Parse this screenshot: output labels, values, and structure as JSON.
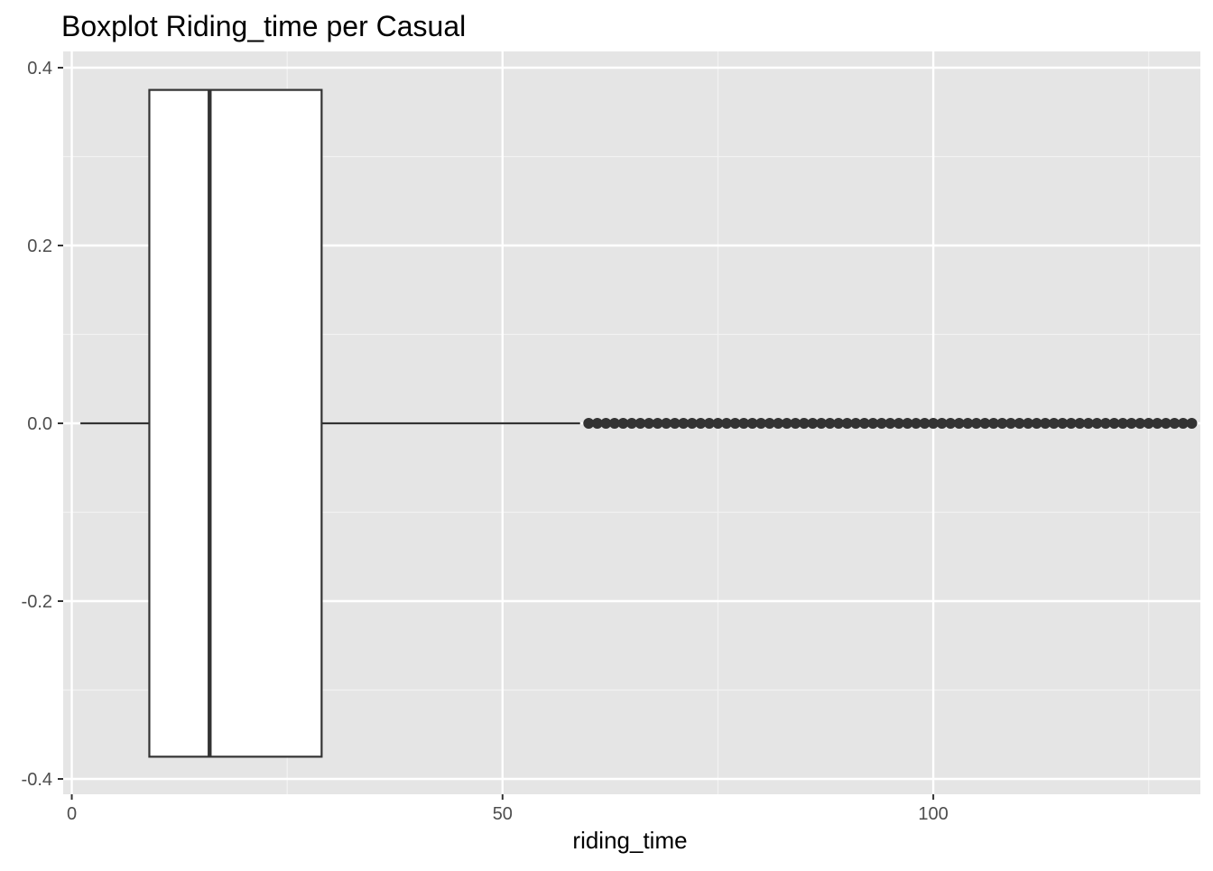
{
  "chart_data": {
    "type": "boxplot",
    "title": "Boxplot Riding_time per Casual",
    "xlabel": "riding_time",
    "ylabel": "",
    "orientation": "horizontal",
    "xlim": [
      -1,
      131
    ],
    "ylim": [
      -0.4,
      0.4
    ],
    "x_ticks": [
      0,
      50,
      100
    ],
    "x_minor_ticks": [
      25,
      75,
      125
    ],
    "y_ticks": [
      0.4,
      0.2,
      0.0,
      -0.2,
      -0.4
    ],
    "y_tick_labels": [
      "0.4",
      "0.2",
      "0.0",
      "-0.2",
      "-0.4"
    ],
    "y_minor_ticks": [
      0.3,
      0.1,
      -0.1,
      -0.3
    ],
    "box": {
      "y_center": 0.0,
      "y_half_width": 0.375,
      "whisker_low": 1,
      "q1": 9,
      "median": 16,
      "q3": 29,
      "whisker_high": 59
    },
    "outliers": {
      "y": 0.0,
      "from": 60,
      "to": 130,
      "step": 1
    },
    "grid": true,
    "legend": "none",
    "colors": {
      "panel_background": "#e5e5e5",
      "grid_major": "#ffffff",
      "grid_minor": "#f2f2f2",
      "box_fill": "#ffffff",
      "box_line": "#333333",
      "outlier": "#333333",
      "tick_text": "#4d4d4d"
    }
  }
}
